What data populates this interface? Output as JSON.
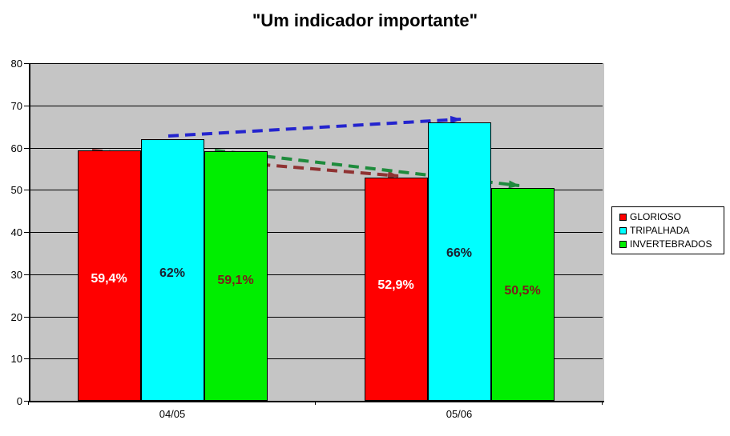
{
  "title": "\"Um indicador importante\"",
  "chart_data": {
    "type": "bar",
    "title": "\"Um indicador importante\"",
    "categories": [
      "04/05",
      "05/06"
    ],
    "series": [
      {
        "name": "GLORIOSO",
        "color": "#FF0000",
        "values": [
          59.4,
          52.9
        ],
        "labels": [
          "59,4%",
          "52,9%"
        ],
        "label_color": "#FFFFFF"
      },
      {
        "name": "TRIPALHADA",
        "color": "#00FFFF",
        "values": [
          62,
          66
        ],
        "labels": [
          "62%",
          "66%"
        ],
        "label_color": "#1A1F2E"
      },
      {
        "name": "INVERTEBRADOS",
        "color": "#00EE00",
        "values": [
          59.1,
          50.5
        ],
        "labels": [
          "59,1%",
          "50,5%"
        ],
        "label_color": "#7C1C1C"
      }
    ],
    "ylim": [
      0,
      80
    ],
    "ytick_step": 10,
    "yticks": [
      "0",
      "10",
      "20",
      "30",
      "40",
      "50",
      "60",
      "70",
      "80"
    ],
    "grid": true,
    "plot_bg": "#C5C5C5",
    "legend_position": "right",
    "arrows": [
      {
        "series": "TRIPALHADA",
        "color": "#2424CE",
        "direction": "up",
        "from_value": 62,
        "to_value": 66
      },
      {
        "series": "GLORIOSO",
        "color": "#8F3232",
        "direction": "down",
        "from_value": 59.4,
        "to_value": 52.9
      },
      {
        "series": "INVERTEBRADOS",
        "color": "#1E8B3C",
        "direction": "down",
        "from_value": 59.1,
        "to_value": 50.5
      }
    ]
  },
  "legend": {
    "items": [
      {
        "label": "GLORIOSO",
        "color": "#FF0000"
      },
      {
        "label": "TRIPALHADA",
        "color": "#00FFFF"
      },
      {
        "label": "INVERTEBRADOS",
        "color": "#00EE00"
      }
    ]
  }
}
